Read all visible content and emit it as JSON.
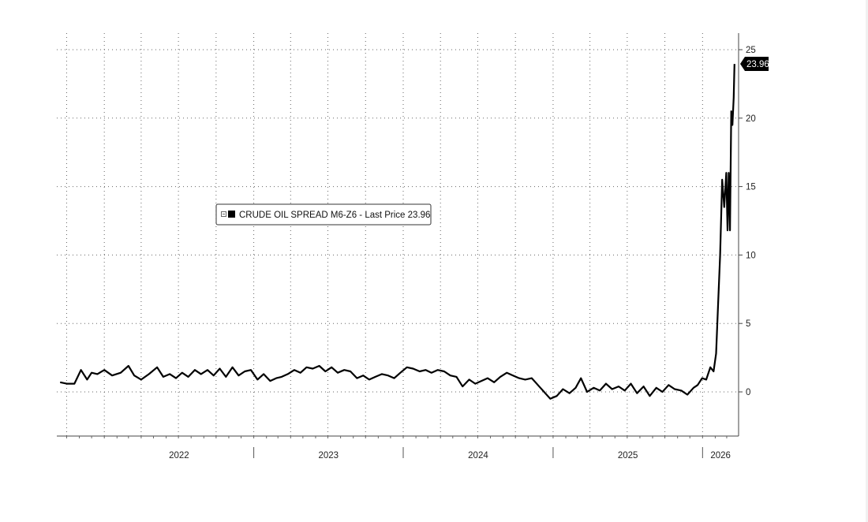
{
  "chart_data": {
    "type": "line",
    "title": "",
    "xlabel": "",
    "ylabel": "",
    "ylim": [
      -3.2,
      26
    ],
    "y_ticks": [
      0,
      5,
      10,
      15,
      20,
      25
    ],
    "y_tick_labels": [
      "0",
      "5",
      "10",
      "15",
      "20",
      "25"
    ],
    "x_tick_labels": [
      "2022",
      "2023",
      "2024",
      "2025",
      "2026"
    ],
    "y_axis_position": "right",
    "grid": true,
    "legend": {
      "placement": "upper-left-center",
      "text": "CRUDE OIL SPREAD M6-Z6 - Last Price 23.96"
    },
    "last_price_label": "23.96",
    "last_price_color": "#000000",
    "line_color": "#000000",
    "series": [
      {
        "name": "CRUDE OIL SPREAD M6-Z6",
        "x": [
          "2021-09-15",
          "2021-10-01",
          "2021-10-20",
          "2021-11-05",
          "2021-11-20",
          "2021-12-01",
          "2021-12-15",
          "2022-01-01",
          "2022-01-20",
          "2022-02-10",
          "2022-03-01",
          "2022-03-15",
          "2022-04-01",
          "2022-04-20",
          "2022-05-10",
          "2022-05-25",
          "2022-06-10",
          "2022-06-25",
          "2022-07-10",
          "2022-07-25",
          "2022-08-10",
          "2022-08-25",
          "2022-09-10",
          "2022-09-25",
          "2022-10-10",
          "2022-10-25",
          "2022-11-10",
          "2022-11-25",
          "2022-12-10",
          "2022-12-25",
          "2023-01-10",
          "2023-01-25",
          "2023-02-10",
          "2023-02-25",
          "2023-03-10",
          "2023-03-25",
          "2023-04-10",
          "2023-04-25",
          "2023-05-10",
          "2023-05-25",
          "2023-06-10",
          "2023-06-25",
          "2023-07-10",
          "2023-07-25",
          "2023-08-10",
          "2023-08-25",
          "2023-09-10",
          "2023-09-25",
          "2023-10-10",
          "2023-10-25",
          "2023-11-10",
          "2023-11-25",
          "2023-12-10",
          "2023-12-25",
          "2024-01-10",
          "2024-01-25",
          "2024-02-10",
          "2024-02-25",
          "2024-03-10",
          "2024-03-25",
          "2024-04-10",
          "2024-04-25",
          "2024-05-10",
          "2024-05-25",
          "2024-06-10",
          "2024-06-25",
          "2024-07-10",
          "2024-07-25",
          "2024-08-10",
          "2024-08-25",
          "2024-09-10",
          "2024-09-25",
          "2024-10-10",
          "2024-10-25",
          "2024-11-10",
          "2024-11-25",
          "2024-12-10",
          "2024-12-25",
          "2025-01-10",
          "2025-01-25",
          "2025-02-10",
          "2025-02-25",
          "2025-03-10",
          "2025-03-25",
          "2025-04-10",
          "2025-04-25",
          "2025-05-10",
          "2025-05-25",
          "2025-06-10",
          "2025-06-25",
          "2025-07-10",
          "2025-07-25",
          "2025-08-10",
          "2025-08-25",
          "2025-09-10",
          "2025-09-25",
          "2025-10-10",
          "2025-10-25",
          "2025-11-10",
          "2025-11-25",
          "2025-12-10",
          "2025-12-20",
          "2025-12-31",
          "2026-01-10",
          "2026-01-20",
          "2026-01-28",
          "2026-02-03",
          "2026-02-08",
          "2026-02-13",
          "2026-02-18",
          "2026-02-23",
          "2026-02-28",
          "2026-03-03",
          "2026-03-06",
          "2026-03-09",
          "2026-03-12",
          "2026-03-15",
          "2026-03-18",
          "2026-03-20"
        ],
        "values": [
          0.7,
          0.6,
          0.6,
          1.6,
          0.9,
          1.4,
          1.3,
          1.6,
          1.2,
          1.4,
          1.9,
          1.2,
          0.9,
          1.3,
          1.8,
          1.1,
          1.3,
          1.0,
          1.4,
          1.1,
          1.6,
          1.3,
          1.6,
          1.2,
          1.7,
          1.1,
          1.8,
          1.2,
          1.5,
          1.6,
          0.9,
          1.3,
          0.8,
          1.0,
          1.1,
          1.3,
          1.6,
          1.4,
          1.8,
          1.7,
          1.9,
          1.5,
          1.8,
          1.4,
          1.6,
          1.5,
          1.0,
          1.2,
          0.9,
          1.1,
          1.3,
          1.2,
          1.0,
          1.4,
          1.8,
          1.7,
          1.5,
          1.6,
          1.4,
          1.6,
          1.5,
          1.2,
          1.1,
          0.4,
          0.9,
          0.6,
          0.8,
          1.0,
          0.7,
          1.1,
          1.4,
          1.2,
          1.0,
          0.9,
          1.0,
          0.5,
          0.0,
          -0.5,
          -0.3,
          0.2,
          -0.1,
          0.3,
          1.0,
          0.0,
          0.3,
          0.1,
          0.6,
          0.2,
          0.4,
          0.1,
          0.6,
          -0.1,
          0.4,
          -0.3,
          0.3,
          0.0,
          0.5,
          0.2,
          0.1,
          -0.2,
          0.3,
          0.5,
          1.0,
          0.9,
          1.8,
          1.5,
          2.8,
          6.5,
          10.0,
          15.5,
          13.5,
          16.0,
          11.8,
          16.0,
          11.8,
          20.5,
          19.5,
          21.5,
          23.96
        ]
      }
    ]
  }
}
